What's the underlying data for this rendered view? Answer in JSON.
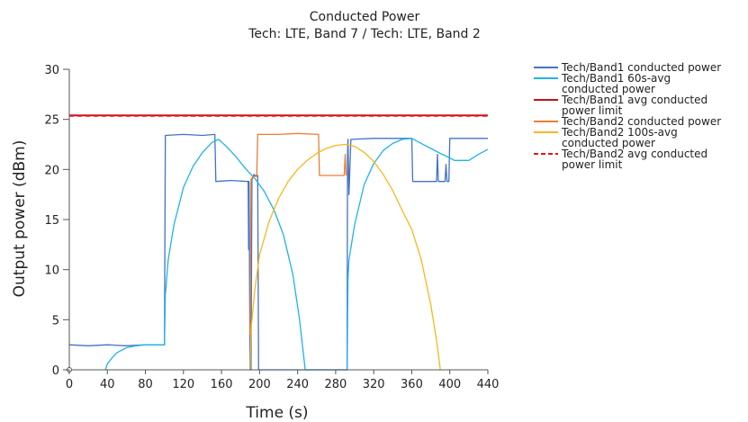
{
  "chart_data": {
    "type": "line",
    "title": "Conducted Power",
    "subtitle": "Tech: LTE, Band 7 / Tech: LTE, Band 2",
    "xlabel": "Time (s)",
    "ylabel": "Output power (dBm)",
    "xlim": [
      0,
      440
    ],
    "ylim": [
      0,
      30
    ],
    "xticks": [
      0,
      40,
      80,
      120,
      160,
      200,
      240,
      280,
      320,
      360,
      400,
      440
    ],
    "yticks": [
      0,
      5,
      10,
      15,
      20,
      25,
      30
    ],
    "grid": false,
    "legend_position": "right",
    "series": [
      {
        "name": "Tech/Band1 conducted power",
        "color": "#4472c4",
        "dash": "solid",
        "points": [
          [
            0,
            2.5
          ],
          [
            20,
            2.4
          ],
          [
            40,
            2.5
          ],
          [
            60,
            2.4
          ],
          [
            80,
            2.5
          ],
          [
            100,
            2.5
          ],
          [
            101,
            23.4
          ],
          [
            120,
            23.5
          ],
          [
            140,
            23.4
          ],
          [
            153,
            23.5
          ],
          [
            154,
            18.8
          ],
          [
            170,
            18.9
          ],
          [
            188,
            18.8
          ],
          [
            188.5,
            12
          ],
          [
            189,
            18.8
          ],
          [
            190,
            0
          ],
          [
            191,
            0
          ],
          [
            192,
            19
          ],
          [
            194,
            19.5
          ],
          [
            195,
            19.4
          ],
          [
            198,
            19.4
          ],
          [
            199,
            0
          ],
          [
            200,
            0
          ],
          [
            201,
            0
          ],
          [
            290,
            0
          ],
          [
            291,
            0
          ],
          [
            292,
            0
          ],
          [
            292.5,
            21.5
          ],
          [
            293,
            23
          ],
          [
            294,
            17.5
          ],
          [
            296,
            23
          ],
          [
            320,
            23.1
          ],
          [
            340,
            23.1
          ],
          [
            360,
            23.1
          ],
          [
            361,
            18.8
          ],
          [
            380,
            18.8
          ],
          [
            386,
            18.8
          ],
          [
            387,
            21.5
          ],
          [
            388,
            18.8
          ],
          [
            395,
            18.8
          ],
          [
            396,
            20.5
          ],
          [
            397,
            18.8
          ],
          [
            399,
            18.8
          ],
          [
            400,
            23.1
          ],
          [
            420,
            23.1
          ],
          [
            440,
            23.1
          ]
        ]
      },
      {
        "name": "Tech/Band1 60s-avg conducted power",
        "color": "#1eb4e6",
        "dash": "solid",
        "points": [
          [
            38,
            0
          ],
          [
            40,
            0.6
          ],
          [
            45,
            1.2
          ],
          [
            50,
            1.7
          ],
          [
            60,
            2.2
          ],
          [
            70,
            2.4
          ],
          [
            80,
            2.5
          ],
          [
            100,
            2.5
          ],
          [
            101,
            7.5
          ],
          [
            104,
            11
          ],
          [
            110,
            14.5
          ],
          [
            120,
            18.2
          ],
          [
            130,
            20.3
          ],
          [
            140,
            21.7
          ],
          [
            150,
            22.7
          ],
          [
            157,
            23.0
          ],
          [
            165,
            22.3
          ],
          [
            175,
            21.3
          ],
          [
            185,
            20.1
          ],
          [
            195,
            19.1
          ],
          [
            205,
            17.8
          ],
          [
            215,
            16.0
          ],
          [
            225,
            13.5
          ],
          [
            235,
            9.5
          ],
          [
            242,
            5.0
          ],
          [
            248,
            0
          ],
          [
            292,
            0
          ],
          [
            293,
            9
          ],
          [
            294,
            11
          ],
          [
            300,
            14.5
          ],
          [
            310,
            18.5
          ],
          [
            320,
            20.6
          ],
          [
            330,
            21.9
          ],
          [
            340,
            22.6
          ],
          [
            350,
            23.0
          ],
          [
            360,
            23.1
          ],
          [
            370,
            22.6
          ],
          [
            380,
            22.1
          ],
          [
            390,
            21.6
          ],
          [
            399,
            21.2
          ],
          [
            405,
            20.9
          ],
          [
            420,
            20.9
          ],
          [
            430,
            21.5
          ],
          [
            440,
            22.0
          ]
        ]
      },
      {
        "name": "Tech/Band1 avg conducted power limit",
        "color": "#c0141e",
        "dash": "solid",
        "points": [
          [
            0,
            25.4
          ],
          [
            440,
            25.4
          ]
        ]
      },
      {
        "name": "Tech/Band2 conducted power",
        "color": "#ed7d31",
        "dash": "solid",
        "points": [
          [
            190,
            3.5
          ],
          [
            191,
            19
          ],
          [
            193,
            19.3
          ],
          [
            195,
            19.3
          ],
          [
            197,
            19.3
          ],
          [
            198,
            23.5
          ],
          [
            220,
            23.5
          ],
          [
            240,
            23.6
          ],
          [
            262,
            23.5
          ],
          [
            263,
            19.4
          ],
          [
            280,
            19.4
          ],
          [
            289,
            19.4
          ],
          [
            290,
            21.5
          ],
          [
            291,
            19.4
          ]
        ]
      },
      {
        "name": "Tech/Band2 100s-avg conducted power",
        "color": "#f5b820",
        "dash": "solid",
        "points": [
          [
            190,
            0
          ],
          [
            191,
            4
          ],
          [
            195,
            8
          ],
          [
            200,
            11.5
          ],
          [
            210,
            14.8
          ],
          [
            220,
            17.1
          ],
          [
            230,
            18.8
          ],
          [
            240,
            20.0
          ],
          [
            250,
            20.9
          ],
          [
            260,
            21.6
          ],
          [
            270,
            22.1
          ],
          [
            280,
            22.4
          ],
          [
            290,
            22.5
          ],
          [
            300,
            22.3
          ],
          [
            310,
            21.7
          ],
          [
            320,
            20.8
          ],
          [
            330,
            19.5
          ],
          [
            340,
            17.9
          ],
          [
            350,
            15.9
          ],
          [
            360,
            14.0
          ],
          [
            370,
            11.0
          ],
          [
            380,
            6.5
          ],
          [
            386,
            3.0
          ],
          [
            390,
            0
          ]
        ]
      },
      {
        "name": "Tech/Band2 avg conducted power limit",
        "color": "#e8141e",
        "dash": "dashed",
        "points": [
          [
            0,
            25.35
          ],
          [
            440,
            25.35
          ]
        ]
      }
    ]
  }
}
